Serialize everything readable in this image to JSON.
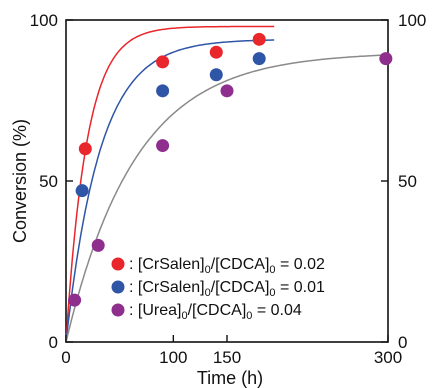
{
  "chart_data": {
    "type": "scatter",
    "xlabel": "Time (h)",
    "ylabel": "Conversion (%)",
    "xlim": [
      0,
      300
    ],
    "ylim": [
      0,
      100
    ],
    "x_ticks": [
      0,
      100,
      150,
      300
    ],
    "y_ticks": [
      0,
      50,
      100
    ],
    "grid": false,
    "legend_position": "bottom-right",
    "series": [
      {
        "name_parts": [
          "[CrSalen]",
          "0",
          "/[CDCA]",
          "0",
          " = 0.02"
        ],
        "color": "#e8262b",
        "x": [
          18,
          90,
          140,
          180
        ],
        "y": [
          60,
          87,
          90,
          94
        ],
        "fit_k": 0.0517,
        "fit_max": 98,
        "fit_end": 195
      },
      {
        "name_parts": [
          "[CrSalen]",
          "0",
          "/[CDCA]",
          "0",
          " = 0.01"
        ],
        "color": "#2f55a6",
        "x": [
          15,
          90,
          140,
          180
        ],
        "y": [
          47,
          78,
          83,
          88
        ],
        "fit_k": 0.0316,
        "fit_max": 94,
        "fit_end": 195
      },
      {
        "name_parts": [
          "[Urea]",
          "0",
          "/[CDCA]",
          "0",
          " = 0.04"
        ],
        "color": "#8e2f8e",
        "x": [
          8,
          30,
          90,
          150,
          298
        ],
        "y": [
          13,
          30,
          61,
          78,
          88
        ],
        "fit_k": 0.0155,
        "fit_max": 90,
        "fit_end": 300,
        "fit_color": "#8a8a8a"
      }
    ]
  }
}
